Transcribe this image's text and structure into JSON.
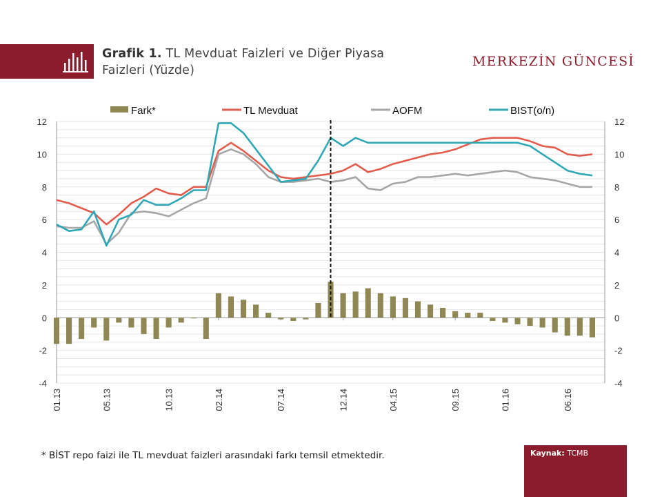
{
  "header": {
    "title_bold": "Grafik 1.",
    "title_rest": "TL Mevduat Faizleri ve Diğer Piyasa",
    "title_line2": "Faizleri (Yüzde)",
    "brand": "MERKEZİN GÜNCESİ",
    "icon": "bar-chart-icon",
    "accent_color": "#8a1c2b"
  },
  "footnote": "* BİST repo faizi ile TL mevduat faizleri arasındaki farkı temsil etmektedir.",
  "source": {
    "label": "Kaynak:",
    "value": "TCMB"
  },
  "chart_data": {
    "type": "line",
    "title": "",
    "xlabel": "",
    "ylabel": "",
    "ylim": [
      -4,
      12
    ],
    "yticks": [
      -4,
      -2,
      0,
      2,
      4,
      6,
      8,
      10,
      12
    ],
    "y2ticks": [
      -4,
      -2,
      0,
      2,
      4,
      6,
      8,
      10,
      12
    ],
    "grid": true,
    "legend_position": "top",
    "x_start": "2013-01",
    "x_end": "2016-09",
    "x_tick_labels": [
      "01.13",
      "05.13",
      "10.13",
      "02.14",
      "07.14",
      "12.14",
      "04.15",
      "09.15",
      "01.16",
      "06.16"
    ],
    "x_tick_dates": [
      "2013-01",
      "2013-05",
      "2013-10",
      "2014-02",
      "2014-07",
      "2014-12",
      "2015-04",
      "2015-09",
      "2016-01",
      "2016-06"
    ],
    "vertical_line_date": "2014-11",
    "series": [
      {
        "name": "Fark*",
        "kind": "bar",
        "color": "#8f8754",
        "points": [
          [
            "2013-01",
            -1.6
          ],
          [
            "2013-02",
            -1.6
          ],
          [
            "2013-03",
            -1.3
          ],
          [
            "2013-04",
            -0.6
          ],
          [
            "2013-05",
            -1.4
          ],
          [
            "2013-06",
            -0.3
          ],
          [
            "2013-07",
            -0.6
          ],
          [
            "2013-08",
            -1.0
          ],
          [
            "2013-09",
            -1.3
          ],
          [
            "2013-10",
            -0.6
          ],
          [
            "2013-11",
            -0.3
          ],
          [
            "2013-12",
            0.0
          ],
          [
            "2014-01",
            -1.3
          ],
          [
            "2014-02",
            1.5
          ],
          [
            "2014-03",
            1.3
          ],
          [
            "2014-04",
            1.1
          ],
          [
            "2014-05",
            0.8
          ],
          [
            "2014-06",
            0.3
          ],
          [
            "2014-07",
            -0.1
          ],
          [
            "2014-08",
            -0.2
          ],
          [
            "2014-09",
            -0.1
          ],
          [
            "2014-10",
            0.9
          ],
          [
            "2014-11",
            2.2
          ],
          [
            "2014-12",
            1.5
          ],
          [
            "2015-01",
            1.6
          ],
          [
            "2015-02",
            1.8
          ],
          [
            "2015-03",
            1.5
          ],
          [
            "2015-04",
            1.3
          ],
          [
            "2015-05",
            1.2
          ],
          [
            "2015-06",
            1.0
          ],
          [
            "2015-07",
            0.8
          ],
          [
            "2015-08",
            0.6
          ],
          [
            "2015-09",
            0.4
          ],
          [
            "2015-10",
            0.3
          ],
          [
            "2015-11",
            0.3
          ],
          [
            "2015-12",
            -0.2
          ],
          [
            "2016-01",
            -0.3
          ],
          [
            "2016-02",
            -0.4
          ],
          [
            "2016-03",
            -0.5
          ],
          [
            "2016-04",
            -0.6
          ],
          [
            "2016-05",
            -0.9
          ],
          [
            "2016-06",
            -1.1
          ],
          [
            "2016-07",
            -1.1
          ],
          [
            "2016-08",
            -1.2
          ]
        ]
      },
      {
        "name": "TL Mevduat",
        "kind": "line",
        "color": "#e25b4d",
        "points": [
          [
            "2013-01",
            7.2
          ],
          [
            "2013-02",
            7.0
          ],
          [
            "2013-03",
            6.7
          ],
          [
            "2013-04",
            6.4
          ],
          [
            "2013-05",
            5.7
          ],
          [
            "2013-06",
            6.3
          ],
          [
            "2013-07",
            7.0
          ],
          [
            "2013-08",
            7.4
          ],
          [
            "2013-09",
            7.9
          ],
          [
            "2013-10",
            7.6
          ],
          [
            "2013-11",
            7.5
          ],
          [
            "2013-12",
            8.0
          ],
          [
            "2014-01",
            8.0
          ],
          [
            "2014-02",
            10.2
          ],
          [
            "2014-03",
            10.7
          ],
          [
            "2014-04",
            10.2
          ],
          [
            "2014-05",
            9.6
          ],
          [
            "2014-06",
            9.0
          ],
          [
            "2014-07",
            8.6
          ],
          [
            "2014-08",
            8.5
          ],
          [
            "2014-09",
            8.6
          ],
          [
            "2014-10",
            8.7
          ],
          [
            "2014-11",
            8.8
          ],
          [
            "2014-12",
            9.0
          ],
          [
            "2015-01",
            9.4
          ],
          [
            "2015-02",
            8.9
          ],
          [
            "2015-03",
            9.1
          ],
          [
            "2015-04",
            9.4
          ],
          [
            "2015-05",
            9.6
          ],
          [
            "2015-06",
            9.8
          ],
          [
            "2015-07",
            10.0
          ],
          [
            "2015-08",
            10.1
          ],
          [
            "2015-09",
            10.3
          ],
          [
            "2015-10",
            10.6
          ],
          [
            "2015-11",
            10.9
          ],
          [
            "2015-12",
            11.0
          ],
          [
            "2016-01",
            11.0
          ],
          [
            "2016-02",
            11.0
          ],
          [
            "2016-03",
            10.8
          ],
          [
            "2016-04",
            10.5
          ],
          [
            "2016-05",
            10.4
          ],
          [
            "2016-06",
            10.0
          ],
          [
            "2016-07",
            9.9
          ],
          [
            "2016-08",
            10.0
          ]
        ]
      },
      {
        "name": "AOFM",
        "kind": "line",
        "color": "#a6a6a6",
        "points": [
          [
            "2013-01",
            5.6
          ],
          [
            "2013-02",
            5.5
          ],
          [
            "2013-03",
            5.5
          ],
          [
            "2013-04",
            5.9
          ],
          [
            "2013-05",
            4.5
          ],
          [
            "2013-06",
            5.2
          ],
          [
            "2013-07",
            6.4
          ],
          [
            "2013-08",
            6.5
          ],
          [
            "2013-09",
            6.4
          ],
          [
            "2013-10",
            6.2
          ],
          [
            "2013-11",
            6.6
          ],
          [
            "2013-12",
            7.0
          ],
          [
            "2014-01",
            7.3
          ],
          [
            "2014-02",
            10.0
          ],
          [
            "2014-03",
            10.3
          ],
          [
            "2014-04",
            10.0
          ],
          [
            "2014-05",
            9.4
          ],
          [
            "2014-06",
            8.6
          ],
          [
            "2014-07",
            8.3
          ],
          [
            "2014-08",
            8.3
          ],
          [
            "2014-09",
            8.4
          ],
          [
            "2014-10",
            8.5
          ],
          [
            "2014-11",
            8.3
          ],
          [
            "2014-12",
            8.4
          ],
          [
            "2015-01",
            8.6
          ],
          [
            "2015-02",
            7.9
          ],
          [
            "2015-03",
            7.8
          ],
          [
            "2015-04",
            8.2
          ],
          [
            "2015-05",
            8.3
          ],
          [
            "2015-06",
            8.6
          ],
          [
            "2015-07",
            8.6
          ],
          [
            "2015-08",
            8.7
          ],
          [
            "2015-09",
            8.8
          ],
          [
            "2015-10",
            8.7
          ],
          [
            "2015-11",
            8.8
          ],
          [
            "2015-12",
            8.9
          ],
          [
            "2016-01",
            9.0
          ],
          [
            "2016-02",
            8.9
          ],
          [
            "2016-03",
            8.6
          ],
          [
            "2016-04",
            8.5
          ],
          [
            "2016-05",
            8.4
          ],
          [
            "2016-06",
            8.2
          ],
          [
            "2016-07",
            8.0
          ],
          [
            "2016-08",
            8.0
          ]
        ]
      },
      {
        "name": "BIST(o/n)",
        "kind": "line",
        "color": "#2fa7b5",
        "points": [
          [
            "2013-01",
            5.7
          ],
          [
            "2013-02",
            5.3
          ],
          [
            "2013-03",
            5.4
          ],
          [
            "2013-04",
            6.5
          ],
          [
            "2013-05",
            4.4
          ],
          [
            "2013-06",
            6.0
          ],
          [
            "2013-07",
            6.3
          ],
          [
            "2013-08",
            7.2
          ],
          [
            "2013-09",
            6.9
          ],
          [
            "2013-10",
            6.9
          ],
          [
            "2013-11",
            7.3
          ],
          [
            "2013-12",
            7.8
          ],
          [
            "2014-01",
            7.8
          ],
          [
            "2014-02",
            11.9
          ],
          [
            "2014-03",
            11.9
          ],
          [
            "2014-04",
            11.3
          ],
          [
            "2014-05",
            10.3
          ],
          [
            "2014-06",
            9.3
          ],
          [
            "2014-07",
            8.3
          ],
          [
            "2014-08",
            8.4
          ],
          [
            "2014-09",
            8.5
          ],
          [
            "2014-10",
            9.6
          ],
          [
            "2014-11",
            11.0
          ],
          [
            "2014-12",
            10.5
          ],
          [
            "2015-01",
            11.0
          ],
          [
            "2015-02",
            10.7
          ],
          [
            "2015-03",
            10.7
          ],
          [
            "2015-04",
            10.7
          ],
          [
            "2015-05",
            10.7
          ],
          [
            "2015-06",
            10.7
          ],
          [
            "2015-07",
            10.7
          ],
          [
            "2015-08",
            10.7
          ],
          [
            "2015-09",
            10.7
          ],
          [
            "2015-10",
            10.7
          ],
          [
            "2015-11",
            10.7
          ],
          [
            "2015-12",
            10.7
          ],
          [
            "2016-01",
            10.7
          ],
          [
            "2016-02",
            10.7
          ],
          [
            "2016-03",
            10.5
          ],
          [
            "2016-04",
            10.0
          ],
          [
            "2016-05",
            9.5
          ],
          [
            "2016-06",
            9.0
          ],
          [
            "2016-07",
            8.8
          ],
          [
            "2016-08",
            8.7
          ]
        ]
      }
    ]
  }
}
